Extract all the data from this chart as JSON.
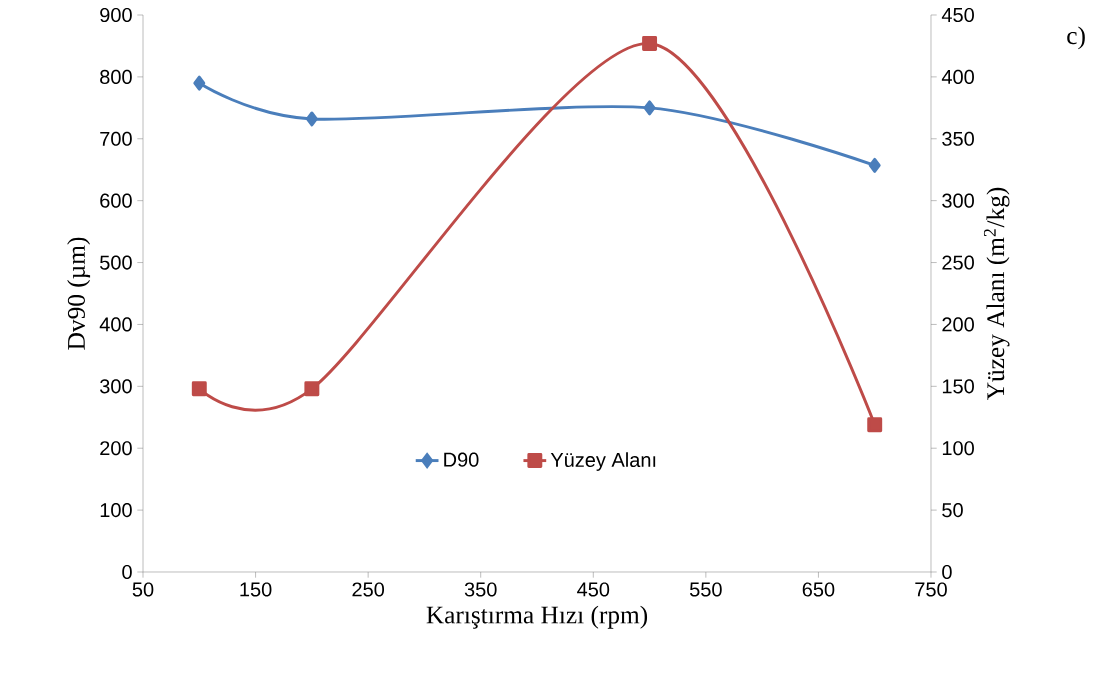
{
  "chart_data": {
    "type": "line",
    "xlabel": "Karıştırma Hızı (rpm)",
    "ylabel": "Dv90 (µm)",
    "y2label": "Yüzey Alanı  (m$^{2}$/kg)",
    "annotations": [
      "c)"
    ],
    "x": [
      100,
      200,
      500,
      700
    ],
    "series": [
      {
        "name": "D90",
        "color": "#4a7ebb",
        "marker": "diamond",
        "values": [
          790,
          732,
          750,
          657
        ]
      },
      {
        "name": "Yüzey Alanı",
        "color": "#be4b48",
        "marker": "square",
        "axis": "y2",
        "values": [
          148,
          148,
          427,
          119
        ]
      }
    ],
    "xlim": [
      50,
      750
    ],
    "xticks": [
      50,
      150,
      250,
      350,
      450,
      550,
      650,
      750
    ],
    "ylim": [
      0,
      900
    ],
    "yticks": [
      0,
      100,
      200,
      300,
      400,
      500,
      600,
      700,
      800,
      900
    ],
    "y2lim": [
      0,
      450
    ],
    "y2ticks": [
      0,
      50,
      100,
      150,
      200,
      250,
      300,
      350,
      400,
      450
    ],
    "grid": false,
    "legend": "bottom",
    "line_style": "solid"
  }
}
